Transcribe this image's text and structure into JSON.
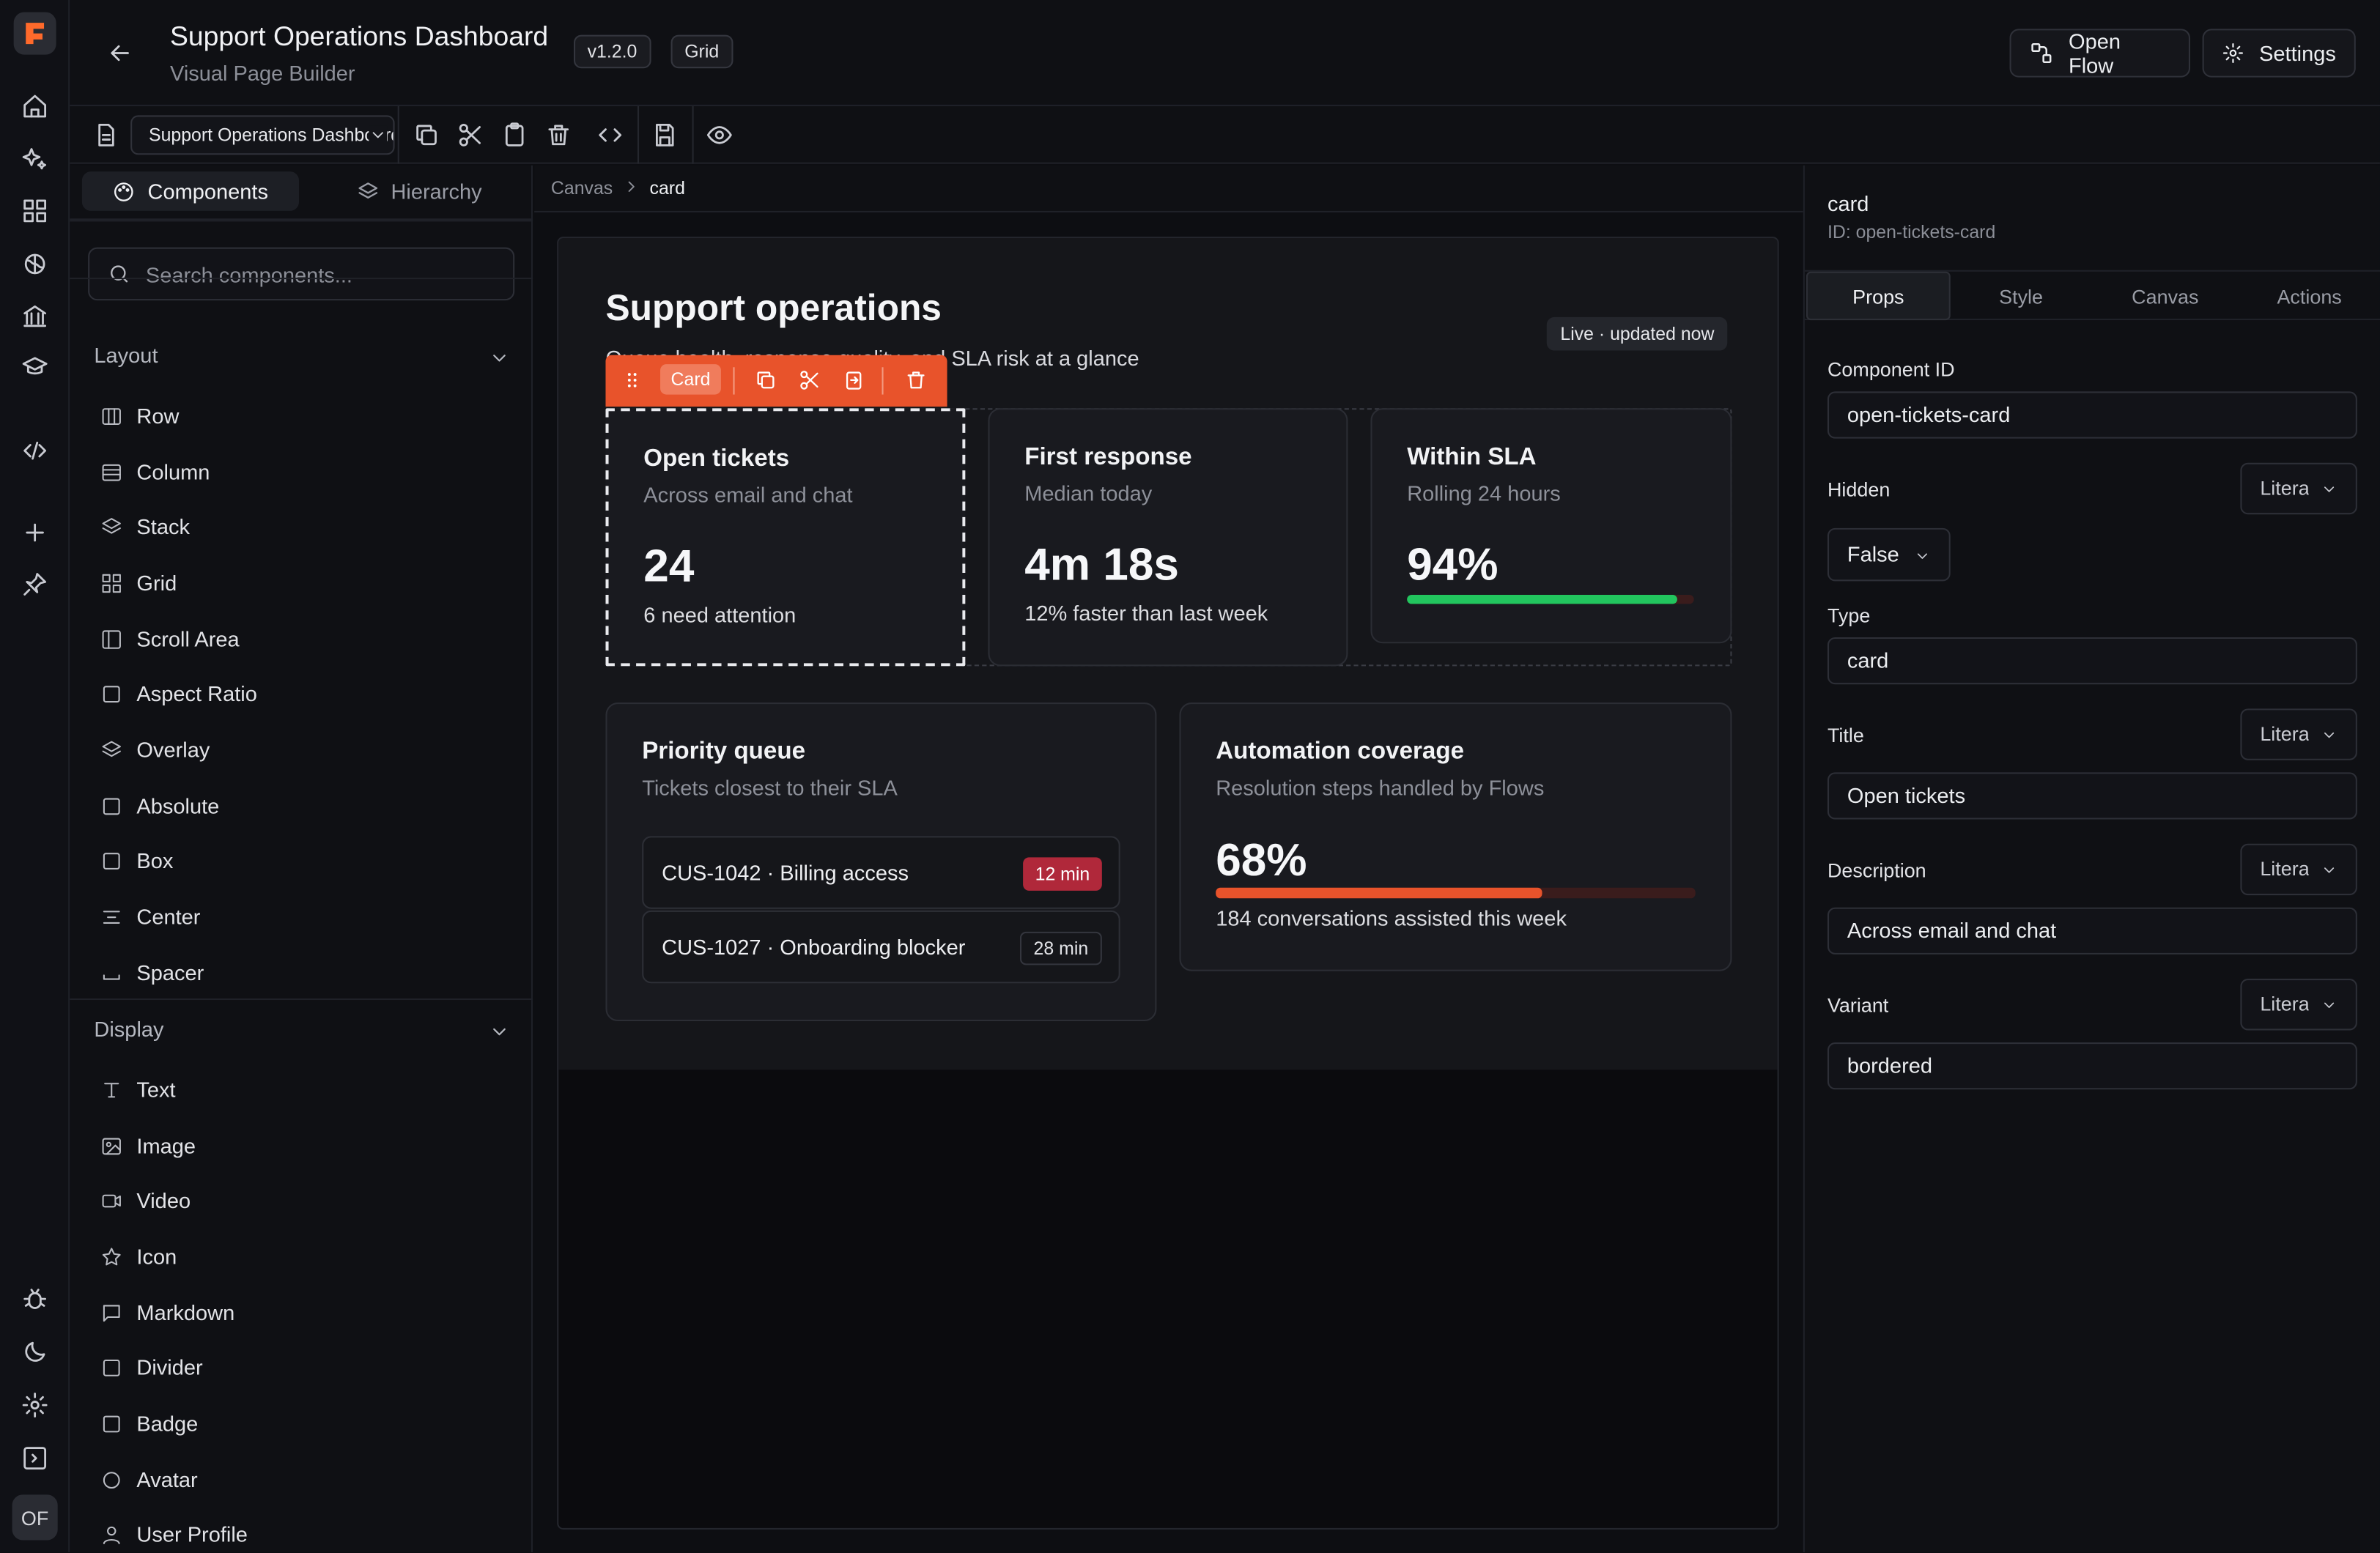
{
  "app": {
    "title": "Support Operations Dashboard",
    "subtitle": "Visual Page Builder",
    "version": "v1.2.0",
    "layout_badge": "Grid",
    "open_flow_label": "Open Flow",
    "settings_label": "Settings",
    "user_initials": "OF"
  },
  "toolbar": {
    "page_select_value": "Support Operations Dashboard"
  },
  "left_panel": {
    "tabs": [
      {
        "label": "Components",
        "active": true
      },
      {
        "label": "Hierarchy",
        "active": false
      }
    ],
    "search_placeholder": "Search components...",
    "sections": [
      {
        "title": "Layout",
        "items": [
          {
            "label": "Row",
            "icon": "columns-icon"
          },
          {
            "label": "Column",
            "icon": "rows-icon"
          },
          {
            "label": "Stack",
            "icon": "layers-icon"
          },
          {
            "label": "Grid",
            "icon": "grid-icon"
          },
          {
            "label": "Scroll Area",
            "icon": "panel-icon"
          },
          {
            "label": "Aspect Ratio",
            "icon": "square-icon"
          },
          {
            "label": "Overlay",
            "icon": "layers-icon"
          },
          {
            "label": "Absolute",
            "icon": "square-icon"
          },
          {
            "label": "Box",
            "icon": "square-icon"
          },
          {
            "label": "Center",
            "icon": "align-center-icon"
          },
          {
            "label": "Spacer",
            "icon": "spacer-icon"
          }
        ]
      },
      {
        "title": "Display",
        "items": [
          {
            "label": "Text",
            "icon": "type-icon"
          },
          {
            "label": "Image",
            "icon": "image-icon"
          },
          {
            "label": "Video",
            "icon": "video-icon"
          },
          {
            "label": "Icon",
            "icon": "star-icon"
          },
          {
            "label": "Markdown",
            "icon": "message-square-icon"
          },
          {
            "label": "Divider",
            "icon": "square-icon"
          },
          {
            "label": "Badge",
            "icon": "square-icon"
          },
          {
            "label": "Avatar",
            "icon": "circle-icon"
          },
          {
            "label": "User Profile",
            "icon": "user-icon"
          }
        ]
      }
    ]
  },
  "breadcrumb": {
    "root": "Canvas",
    "current": "card"
  },
  "canvas": {
    "heading": "Support operations",
    "description": "Queue health, response quality, and SLA risk at a glance",
    "live_badge": "Live · updated now",
    "selection_label": "Card",
    "stat_cards": [
      {
        "title": "Open tickets",
        "description": "Across email and chat",
        "value": "24",
        "footer": "6 need attention"
      },
      {
        "title": "First response",
        "description": "Median today",
        "value": "4m 18s",
        "footer": "12% faster than last week"
      },
      {
        "title": "Within SLA",
        "description": "Rolling 24 hours",
        "value": "94%",
        "progress": 0.94
      }
    ],
    "priority_queue": {
      "title": "Priority queue",
      "description": "Tickets closest to their SLA",
      "rows": [
        {
          "label": "CUS-1042 · Billing access",
          "badge": "12 min",
          "urgent": true
        },
        {
          "label": "CUS-1027 · Onboarding blocker",
          "badge": "28 min",
          "urgent": false
        }
      ]
    },
    "automation": {
      "title": "Automation coverage",
      "description": "Resolution steps handled by Flows",
      "value": "68%",
      "progress": 0.68,
      "footer": "184 conversations assisted this week"
    }
  },
  "right_panel": {
    "component_name": "card",
    "component_id_text": "ID: open-tickets-card",
    "tabs": [
      {
        "label": "Props",
        "active": true
      },
      {
        "label": "Style",
        "active": false
      },
      {
        "label": "Canvas",
        "active": false
      },
      {
        "label": "Actions",
        "active": false
      }
    ],
    "fields": {
      "component_id": {
        "label": "Component ID",
        "value": "open-tickets-card"
      },
      "hidden": {
        "label": "Hidden",
        "mode": "Literal",
        "value": "False"
      },
      "type": {
        "label": "Type",
        "value": "card"
      },
      "title": {
        "label": "Title",
        "mode": "Literal",
        "value": "Open tickets"
      },
      "description": {
        "label": "Description",
        "mode": "Literal",
        "value": "Across email and chat"
      },
      "variant": {
        "label": "Variant",
        "mode": "Literal",
        "value": "bordered"
      }
    }
  },
  "colors": {
    "accent": "#e8532b",
    "success": "#22c55e",
    "danger": "#b0283a",
    "background": "#0d0e12"
  }
}
